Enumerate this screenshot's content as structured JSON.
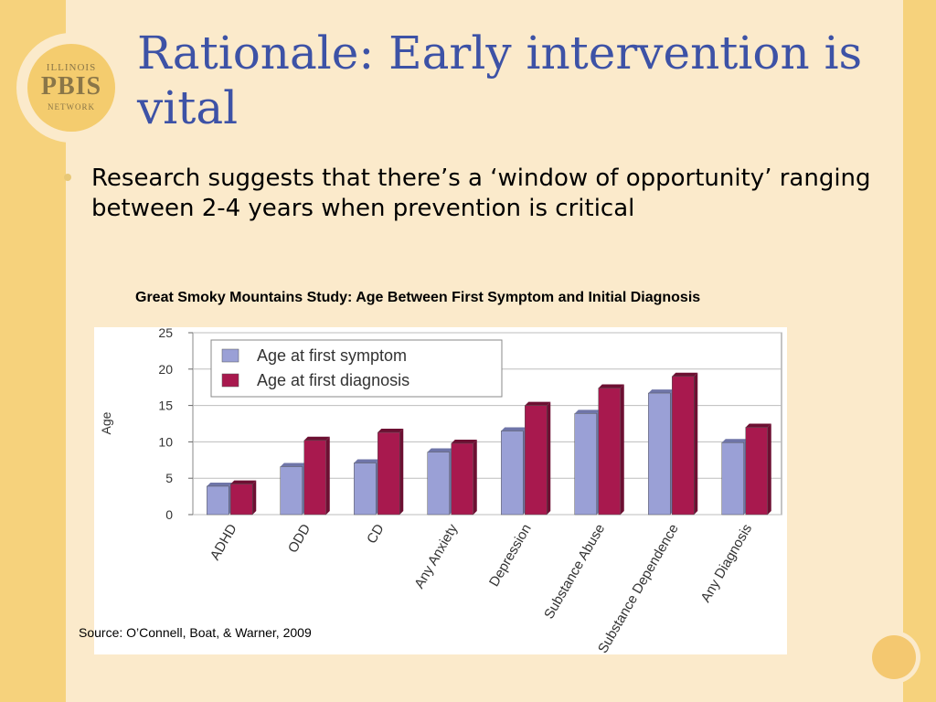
{
  "slide": {
    "title": "Rationale: Early intervention is vital",
    "bullet": "Research suggests that there’s a ‘window of opportunity’ ranging between 2-4 years when prevention is critical",
    "source": "Source: O’Connell, Boat, & Warner, 2009",
    "logo": {
      "line1": "ILLINOIS",
      "line2": "PBIS",
      "line3": "NETWORK"
    }
  },
  "colors": {
    "symptom": "#9aa0d6",
    "diagnosis": "#a8194e",
    "title": "#3d52a6"
  },
  "chart_data": {
    "type": "bar",
    "title": "Great Smoky Mountains Study: Age Between First Symptom and Initial Diagnosis",
    "ylabel": "Age",
    "ylim": [
      0,
      25
    ],
    "yticks": [
      "0",
      "5",
      "10",
      "15",
      "20",
      "25"
    ],
    "categories": [
      "ADHD",
      "ODD",
      "CD",
      "Any Anxiety",
      "Depression",
      "Substance Abuse",
      "Substance Dependence",
      "Any Diagnosis"
    ],
    "series": [
      {
        "name": "Age at first symptom",
        "values": [
          3.9,
          6.6,
          7.1,
          8.6,
          11.5,
          13.9,
          16.7,
          9.9
        ]
      },
      {
        "name": "Age at first diagnosis",
        "values": [
          4.2,
          10.2,
          11.3,
          9.8,
          15.0,
          17.4,
          19.0,
          12.0
        ]
      }
    ],
    "grid": true,
    "legend_position": "top-left"
  }
}
